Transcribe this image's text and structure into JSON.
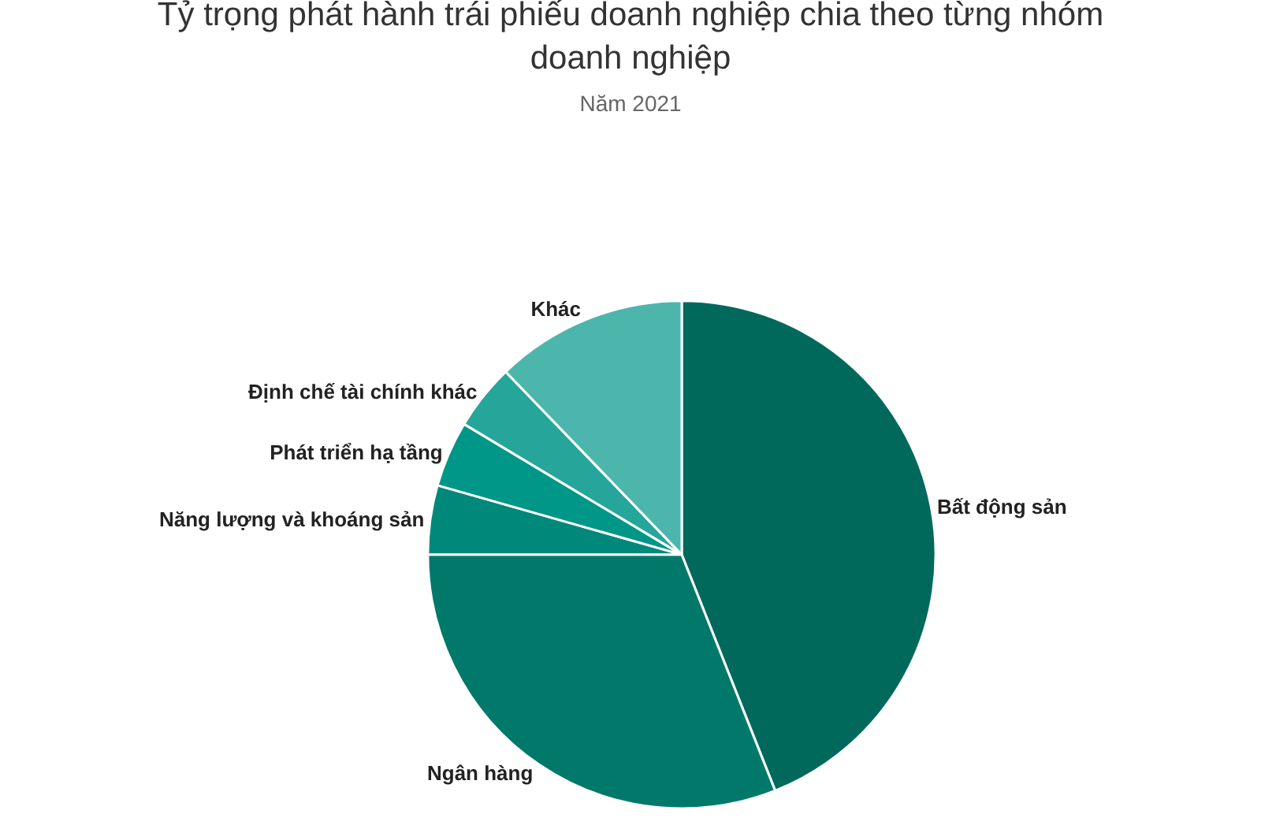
{
  "chart_data": {
    "type": "pie",
    "title": "Tỷ trọng phát hành trái phiếu doanh nghiệp chia theo từng nhóm doanh nghiệp",
    "subtitle": "Năm 2021",
    "categories": [
      "Bất động sản",
      "Ngân hàng",
      "Năng lượng và khoáng sản",
      "Phát triển hạ tầng",
      "Định chế tài chính khác",
      "Khác"
    ],
    "values": [
      44,
      31,
      4.4,
      4.2,
      4.2,
      12.2
    ],
    "colors": [
      "#00695c",
      "#00796b",
      "#00897b",
      "#009688",
      "#26a69a",
      "#4db6ac"
    ],
    "legend": false
  }
}
